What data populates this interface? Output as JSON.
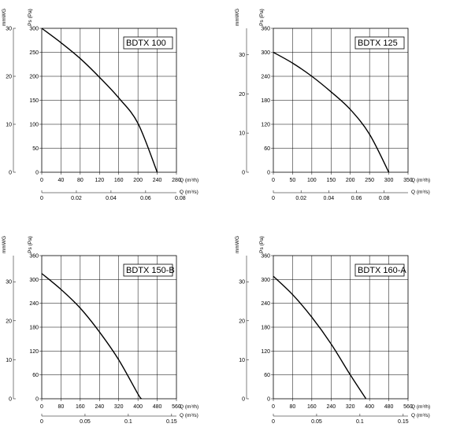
{
  "chart_data": [
    {
      "type": "line",
      "title": "BDTX 100",
      "x": [
        0,
        40,
        80,
        120,
        160,
        200,
        240
      ],
      "series": [
        {
          "values": [
            300,
            270,
            237,
            198,
            155,
            102,
            0
          ]
        }
      ],
      "xlabel": "Q (m³/h)",
      "xlabel2": "Q (m³/s)",
      "ylabel": "Ps (Pa)",
      "ylabel2": "mmWG",
      "xlim": [
        0,
        280
      ],
      "ylim": [
        0,
        300
      ],
      "x_ticks": [
        "0",
        "40",
        "80",
        "120",
        "160",
        "200",
        "240",
        "280"
      ],
      "y_ticks": [
        "0",
        "50",
        "100",
        "150",
        "200",
        "250",
        "300"
      ],
      "x2_ticks": [
        "0",
        "0.02",
        "0.04",
        "0.06",
        "0.08"
      ],
      "x2_values": [
        0,
        0.02,
        0.04,
        0.06,
        0.08
      ],
      "x2_max": 0.0778,
      "y2_ticks": [
        "0",
        "10",
        "20",
        "30"
      ],
      "y2_values": [
        0,
        10,
        20,
        30
      ],
      "y2_max": 30,
      "grid": true
    },
    {
      "type": "line",
      "title": "BDTX 125",
      "x": [
        0,
        50,
        100,
        150,
        200,
        250,
        300
      ],
      "series": [
        {
          "values": [
            300,
            273,
            240,
            201,
            157,
            95,
            0
          ]
        }
      ],
      "xlabel": "Q (m³/h)",
      "xlabel2": "Q (m³/s)",
      "ylabel": "Ps (Pa)",
      "ylabel2": "mmWG",
      "xlim": [
        0,
        350
      ],
      "ylim": [
        0,
        360
      ],
      "x_ticks": [
        "0",
        "50",
        "100",
        "150",
        "200",
        "250",
        "300",
        "350"
      ],
      "y_ticks": [
        "0",
        "60",
        "120",
        "180",
        "240",
        "300",
        "360"
      ],
      "x2_ticks": [
        "0",
        "0.02",
        "0.04",
        "0.06",
        "0.08"
      ],
      "x2_values": [
        0,
        0.02,
        0.04,
        0.06,
        0.08
      ],
      "x2_max": 0.0972,
      "y2_ticks": [
        "0",
        "10",
        "20",
        "30"
      ],
      "y2_values": [
        0,
        10,
        20,
        30
      ],
      "y2_max": 36.7,
      "grid": true
    },
    {
      "type": "line",
      "title": "BDTX 150-B",
      "x": [
        0,
        80,
        160,
        240,
        320,
        400,
        415
      ],
      "series": [
        {
          "values": [
            315,
            275,
            228,
            168,
            98,
            12,
            0
          ]
        }
      ],
      "xlabel": "Q (m³/h)",
      "xlabel2": "Q (m³/s)",
      "ylabel": "Ps (Pa)",
      "ylabel2": "mmWG",
      "xlim": [
        0,
        560
      ],
      "ylim": [
        0,
        360
      ],
      "x_ticks": [
        "0",
        "80",
        "160",
        "240",
        "320",
        "400",
        "480",
        "560"
      ],
      "y_ticks": [
        "0",
        "60",
        "120",
        "180",
        "240",
        "300",
        "360"
      ],
      "x2_ticks": [
        "0",
        "0.05",
        "0.1",
        "0.15"
      ],
      "x2_values": [
        0,
        0.05,
        0.1,
        0.15
      ],
      "x2_max": 0.1556,
      "y2_ticks": [
        "0",
        "10",
        "20",
        "30"
      ],
      "y2_values": [
        0,
        10,
        20,
        30
      ],
      "y2_max": 36.7,
      "grid": true
    },
    {
      "type": "line",
      "title": "BDTX 160-A",
      "x": [
        0,
        80,
        160,
        240,
        320,
        385
      ],
      "series": [
        {
          "values": [
            308,
            262,
            205,
            138,
            60,
            0
          ]
        }
      ],
      "xlabel": "Q (m³/h)",
      "xlabel2": "Q (m³/s)",
      "ylabel": "Ps (Pa)",
      "ylabel2": "mmWG",
      "xlim": [
        0,
        560
      ],
      "ylim": [
        0,
        360
      ],
      "x_ticks": [
        "0",
        "80",
        "160",
        "240",
        "320",
        "400",
        "480",
        "560"
      ],
      "y_ticks": [
        "0",
        "60",
        "120",
        "180",
        "240",
        "300",
        "360"
      ],
      "x2_ticks": [
        "0",
        "0.05",
        "0.1",
        "0.15"
      ],
      "x2_values": [
        0,
        0.05,
        0.1,
        0.15
      ],
      "x2_max": 0.1556,
      "y2_ticks": [
        "0",
        "10",
        "20",
        "30"
      ],
      "y2_values": [
        0,
        10,
        20,
        30
      ],
      "y2_max": 36.7,
      "grid": true
    }
  ]
}
